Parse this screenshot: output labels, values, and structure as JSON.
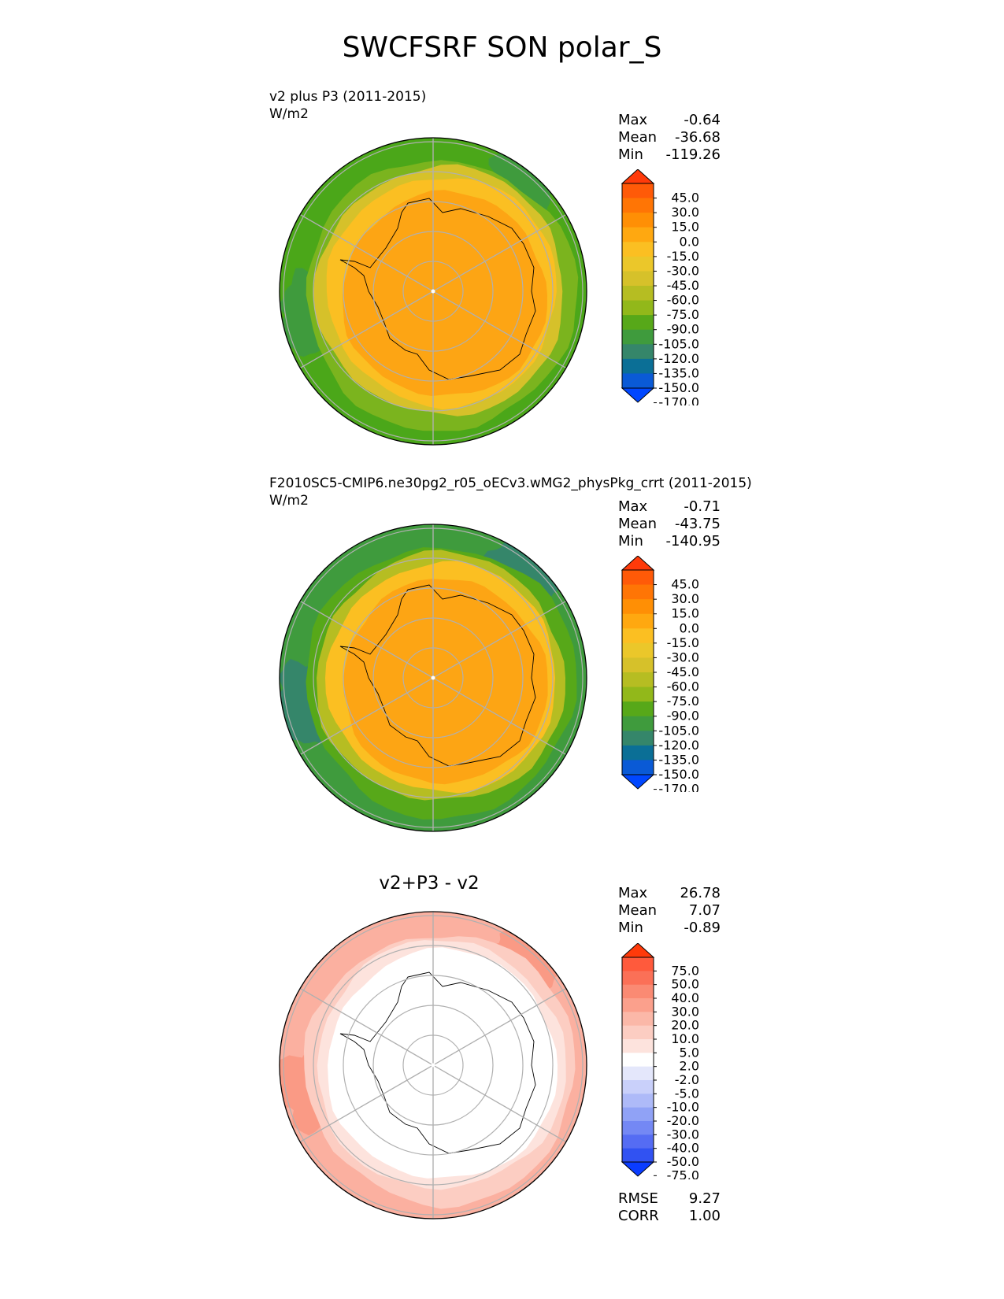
{
  "title": "SWCFSRF SON polar_S",
  "chart_data": [
    {
      "type": "heatmap",
      "projection": "south-polar-stereographic",
      "title": "v2 plus P3 (2011-2015)",
      "units": "W/m2",
      "stats": [
        {
          "label": "Max",
          "value": "-0.64"
        },
        {
          "label": "Mean",
          "value": "-36.68"
        },
        {
          "label": "Min",
          "value": "-119.26"
        }
      ],
      "colorbar": {
        "labels": [
          "45.0",
          "30.0",
          "15.0",
          "0.0",
          "-15.0",
          "-30.0",
          "-45.0",
          "-60.0",
          "-75.0",
          "-90.0",
          "-105.0",
          "-120.0",
          "-135.0",
          "-150.0",
          "-170.0"
        ],
        "colors": [
          "#ff3a0a",
          "#ff5a08",
          "#ff7505",
          "#ff8f05",
          "#ffa810",
          "#fbbf22",
          "#ebc72a",
          "#d6c12a",
          "#b6bd22",
          "#92b81a",
          "#57a819",
          "#3f9b3d",
          "#35866a",
          "#0b6f96",
          "#0a5ad6",
          "#0047ff"
        ],
        "extend": "both"
      },
      "fill": {
        "inner": "#fda514",
        "ring1": "#fbbf22",
        "ring2": "#d6c12a",
        "ring3": "#7bb41e",
        "outer": "#4ba719",
        "patch": "#3f9b3d"
      }
    },
    {
      "type": "heatmap",
      "projection": "south-polar-stereographic",
      "title": "F2010SC5-CMIP6.ne30pg2_r05_oECv3.wMG2_physPkg_crrt (2011-2015)",
      "units": "W/m2",
      "stats": [
        {
          "label": "Max",
          "value": "-0.71"
        },
        {
          "label": "Mean",
          "value": "-43.75"
        },
        {
          "label": "Min",
          "value": "-140.95"
        }
      ],
      "colorbar": {
        "labels": [
          "45.0",
          "30.0",
          "15.0",
          "0.0",
          "-15.0",
          "-30.0",
          "-45.0",
          "-60.0",
          "-75.0",
          "-90.0",
          "-105.0",
          "-120.0",
          "-135.0",
          "-150.0",
          "-170.0"
        ],
        "colors": [
          "#ff3a0a",
          "#ff5a08",
          "#ff7505",
          "#ff8f05",
          "#ffa810",
          "#fbbf22",
          "#ebc72a",
          "#d6c12a",
          "#b6bd22",
          "#92b81a",
          "#57a819",
          "#3f9b3d",
          "#35866a",
          "#0b6f96",
          "#0a5ad6",
          "#0047ff"
        ],
        "extend": "both"
      },
      "fill": {
        "inner": "#fda514",
        "ring1": "#fbbf22",
        "ring2": "#b6bd22",
        "ring3": "#57a819",
        "outer": "#3f9b3d",
        "patch": "#35866a"
      }
    },
    {
      "type": "heatmap",
      "projection": "south-polar-stereographic",
      "title": "v2+P3 - v2",
      "units": "",
      "stats": [
        {
          "label": "Max",
          "value": "26.78"
        },
        {
          "label": "Mean",
          "value": "7.07"
        },
        {
          "label": "Min",
          "value": "-0.89"
        }
      ],
      "extra_stats": [
        {
          "label": "RMSE",
          "value": "9.27"
        },
        {
          "label": "CORR",
          "value": "1.00"
        }
      ],
      "colorbar": {
        "labels": [
          "75.0",
          "50.0",
          "40.0",
          "30.0",
          "20.0",
          "10.0",
          "5.0",
          "2.0",
          "-2.0",
          "-5.0",
          "-10.0",
          "-20.0",
          "-30.0",
          "-40.0",
          "-50.0",
          "-75.0"
        ],
        "colors": [
          "#ff3a0a",
          "#ff5a3c",
          "#fb7057",
          "#fa8a73",
          "#fba08c",
          "#fbb8a8",
          "#fccdc2",
          "#fde3dd",
          "#ffffff",
          "#e4e7fb",
          "#c9d0fa",
          "#aebaf8",
          "#90a2f6",
          "#7488f4",
          "#556cf3",
          "#3152f2",
          "#0a3cff"
        ],
        "extend": "both"
      },
      "fill": {
        "inner": "#ffffff",
        "ring1": "#ffffff",
        "ring2": "#fde3dd",
        "ring3": "#fccdc2",
        "outer": "#fbb0a0",
        "patch": "#fa9a85"
      }
    }
  ]
}
